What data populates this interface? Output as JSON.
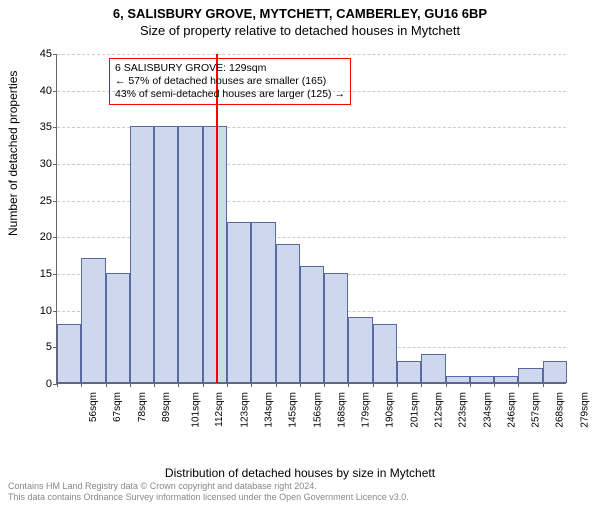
{
  "header": {
    "address": "6, SALISBURY GROVE, MYTCHETT, CAMBERLEY, GU16 6BP",
    "subtitle": "Size of property relative to detached houses in Mytchett"
  },
  "yaxis": {
    "label": "Number of detached properties",
    "min": 0,
    "max": 45,
    "tick_step": 5,
    "ticks": [
      0,
      5,
      10,
      15,
      20,
      25,
      30,
      35,
      40,
      45
    ]
  },
  "xaxis": {
    "label": "Distribution of detached houses by size in Mytchett",
    "ticks": [
      "56sqm",
      "67sqm",
      "78sqm",
      "89sqm",
      "101sqm",
      "112sqm",
      "123sqm",
      "134sqm",
      "145sqm",
      "156sqm",
      "168sqm",
      "179sqm",
      "190sqm",
      "201sqm",
      "212sqm",
      "223sqm",
      "234sqm",
      "246sqm",
      "257sqm",
      "268sqm",
      "279sqm"
    ]
  },
  "histogram": {
    "type": "histogram",
    "bar_fill": "#cdd8ee",
    "bar_border": "#5a6aa0",
    "grid_color": "#cccccc",
    "values": [
      8,
      17,
      15,
      35,
      35,
      35,
      35,
      22,
      22,
      19,
      16,
      15,
      9,
      8,
      3,
      4,
      1,
      1,
      1,
      2,
      3
    ]
  },
  "marker": {
    "position_sqm": 129,
    "min_sqm": 56,
    "max_sqm": 290,
    "color": "#ff0000"
  },
  "callout": {
    "border_color": "#ff0000",
    "line1": "6 SALISBURY GROVE: 129sqm",
    "line2": "← 57% of detached houses are smaller (165)",
    "line3": "43% of semi-detached houses are larger (125) →"
  },
  "footer": {
    "line1": "Contains HM Land Registry data © Crown copyright and database right 2024.",
    "line2": "This data contains Ordnance Survey information licensed under the Open Government Licence v3.0."
  },
  "style": {
    "background": "#ffffff",
    "text_color": "#000000",
    "footer_color": "#888888",
    "title_fontsize": 13,
    "axis_label_fontsize": 12,
    "tick_fontsize": 11
  }
}
